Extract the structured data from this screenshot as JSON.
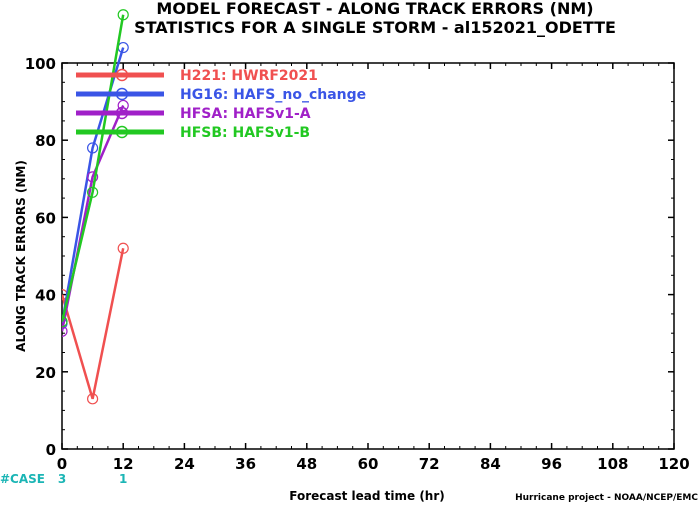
{
  "chart_data": {
    "type": "line",
    "title_lines": [
      "MODEL FORECAST - ALONG TRACK ERRORS (NM)",
      "STATISTICS FOR A SINGLE STORM - al152021_ODETTE"
    ],
    "xlabel": "Forecast lead time (hr)",
    "ylabel": "ALONG TRACK ERRORS (NM)",
    "xlim": [
      0,
      120
    ],
    "ylim": [
      0,
      100
    ],
    "x_ticks": [
      0,
      12,
      24,
      36,
      48,
      60,
      72,
      84,
      96,
      108,
      120
    ],
    "y_ticks": [
      0,
      20,
      40,
      60,
      80,
      100
    ],
    "x": [
      0,
      6,
      12
    ],
    "series": [
      {
        "name": "H221: HWRF2021",
        "color": "#f05050",
        "values": [
          40,
          13,
          52
        ]
      },
      {
        "name": "HG16: HAFS_no_change",
        "color": "#3a55e6",
        "values": [
          32.5,
          78,
          104
        ]
      },
      {
        "name": "HFSA: HAFSv1-A",
        "color": "#a020c8",
        "values": [
          30.5,
          70.5,
          89
        ]
      },
      {
        "name": "HFSB: HAFSv1-B",
        "color": "#22c822",
        "values": [
          33,
          66.5,
          112.5
        ]
      }
    ],
    "legend_position": "top-left",
    "grid": false,
    "case_label": "#CASE",
    "case_counts": [
      {
        "x": 0,
        "label": "3"
      },
      {
        "x": 12,
        "label": "1"
      }
    ],
    "credit": "Hurricane project - NOAA/NCEP/EMC"
  }
}
